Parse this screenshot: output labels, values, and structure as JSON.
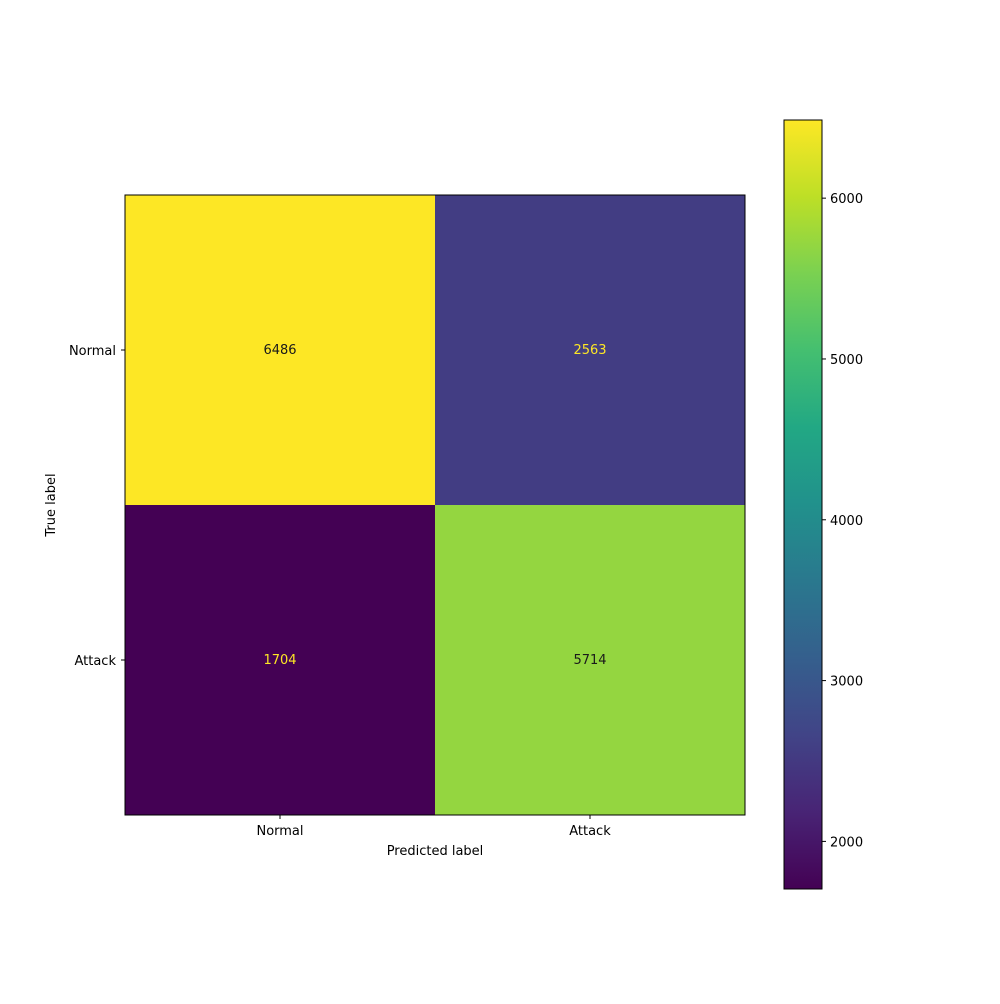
{
  "chart_data": {
    "type": "heatmap",
    "title": "",
    "xlabel": "Predicted label",
    "ylabel": "True label",
    "x_categories": [
      "Normal",
      "Attack"
    ],
    "y_categories": [
      "Normal",
      "Attack"
    ],
    "matrix": [
      [
        6486,
        2563
      ],
      [
        1704,
        5714
      ]
    ],
    "colormap": "viridis",
    "colorbar": {
      "range": [
        1704,
        6486
      ],
      "ticks": [
        2000,
        3000,
        4000,
        5000,
        6000
      ]
    },
    "grid": false
  }
}
